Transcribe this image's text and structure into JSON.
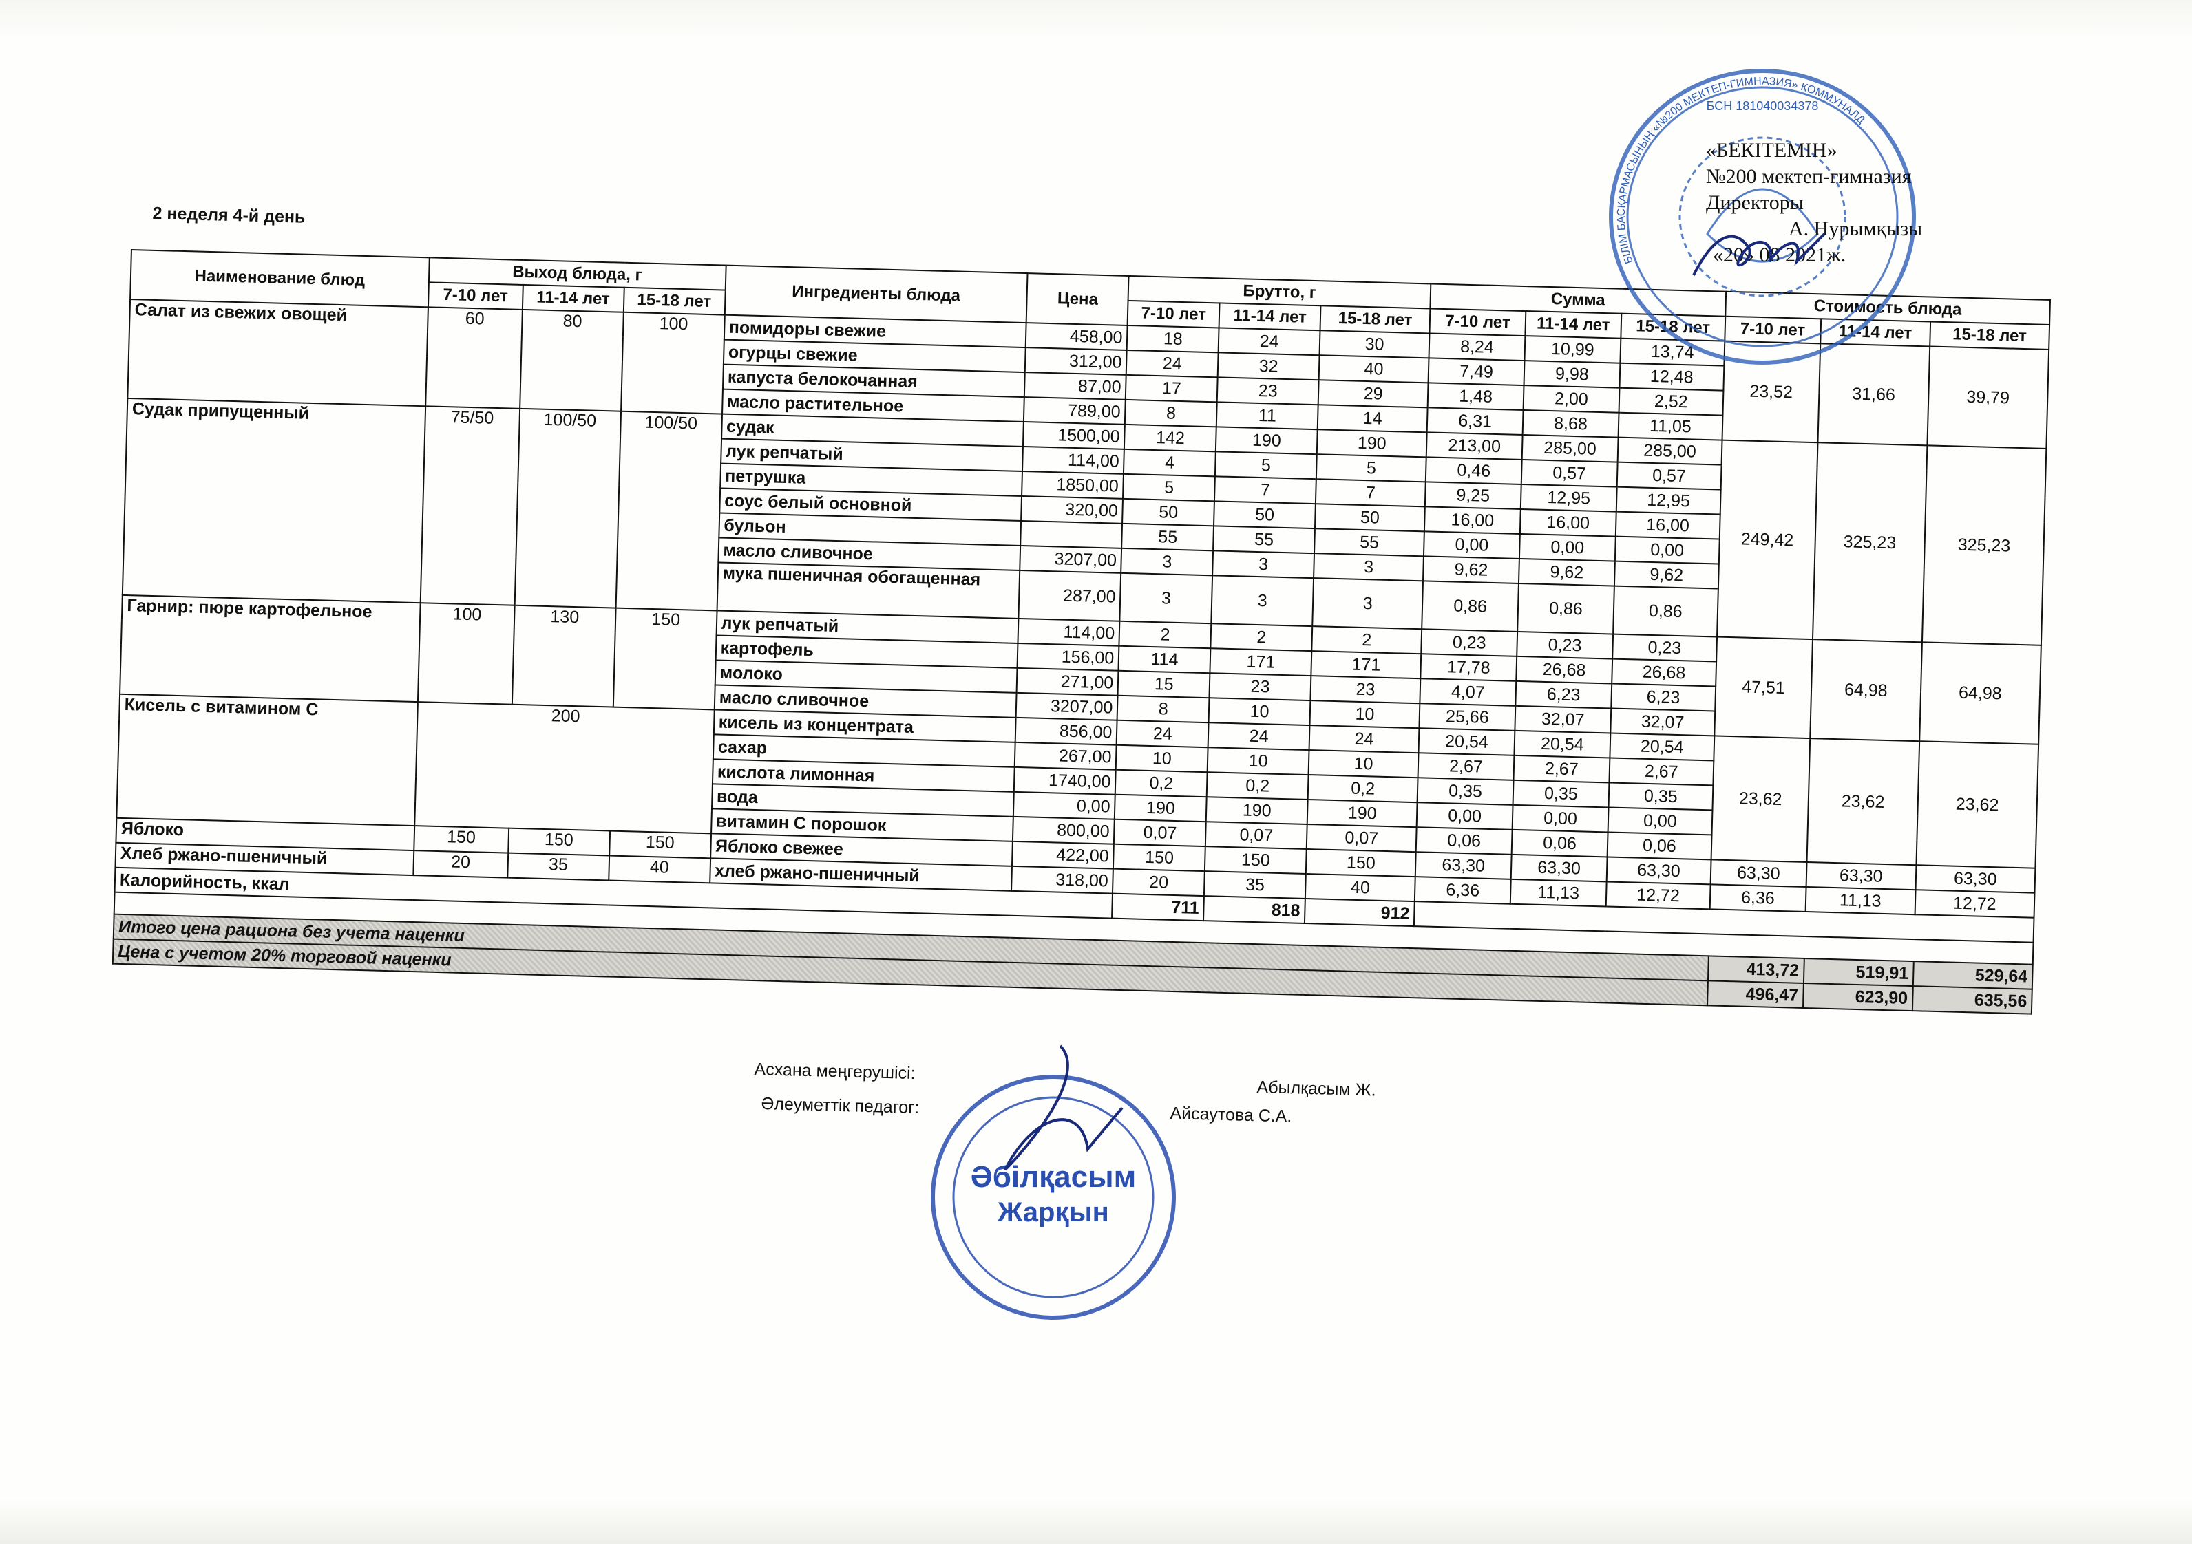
{
  "title": "2 неделя 4-й день",
  "approval": {
    "line1": "«БЕКІТЕМІН»",
    "line2": "№200 мектеп-гимназия",
    "line3": "Директоры",
    "line4": "А. Нурымқызы",
    "line5": "«20» 08 2021ж."
  },
  "headers": {
    "dish": "Наименование блюд",
    "output": "Выход блюда, г",
    "ingredients": "Ингредиенты блюда",
    "price": "Цена",
    "brutto": "Брутто, г",
    "sum": "Сумма",
    "cost": "Стоимость блюда",
    "ages": [
      "7-10 лет",
      "11-14 лет",
      "15-18 лет"
    ]
  },
  "dishes": [
    {
      "name": "Салат из свежих овощей",
      "output": [
        "60",
        "80",
        "100"
      ],
      "cost": [
        "23,52",
        "31,66",
        "39,79"
      ],
      "ingredients": [
        {
          "name": "помидоры свежие",
          "price": "458,00",
          "brutto": [
            "18",
            "24",
            "30"
          ],
          "sum": [
            "8,24",
            "10,99",
            "13,74"
          ]
        },
        {
          "name": "огурцы свежие",
          "price": "312,00",
          "brutto": [
            "24",
            "32",
            "40"
          ],
          "sum": [
            "7,49",
            "9,98",
            "12,48"
          ]
        },
        {
          "name": "капуста белокочанная",
          "price": "87,00",
          "brutto": [
            "17",
            "23",
            "29"
          ],
          "sum": [
            "1,48",
            "2,00",
            "2,52"
          ]
        },
        {
          "name": "масло растительное",
          "price": "789,00",
          "brutto": [
            "8",
            "11",
            "14"
          ],
          "sum": [
            "6,31",
            "8,68",
            "11,05"
          ]
        }
      ]
    },
    {
      "name": "Судак припущенный",
      "output": [
        "75/50",
        "100/50",
        "100/50"
      ],
      "cost": [
        "249,42",
        "325,23",
        "325,23"
      ],
      "ingredients": [
        {
          "name": "судак",
          "price": "1500,00",
          "brutto": [
            "142",
            "190",
            "190"
          ],
          "sum": [
            "213,00",
            "285,00",
            "285,00"
          ]
        },
        {
          "name": "лук репчатый",
          "price": "114,00",
          "brutto": [
            "4",
            "5",
            "5"
          ],
          "sum": [
            "0,46",
            "0,57",
            "0,57"
          ]
        },
        {
          "name": "петрушка",
          "price": "1850,00",
          "brutto": [
            "5",
            "7",
            "7"
          ],
          "sum": [
            "9,25",
            "12,95",
            "12,95"
          ]
        },
        {
          "name": "соус белый основной",
          "price": "320,00",
          "brutto": [
            "50",
            "50",
            "50"
          ],
          "sum": [
            "16,00",
            "16,00",
            "16,00"
          ]
        },
        {
          "name": "бульон",
          "price": "",
          "brutto": [
            "55",
            "55",
            "55"
          ],
          "sum": [
            "0,00",
            "0,00",
            "0,00"
          ]
        },
        {
          "name": "масло сливочное",
          "price": "3207,00",
          "brutto": [
            "3",
            "3",
            "3"
          ],
          "sum": [
            "9,62",
            "9,62",
            "9,62"
          ]
        },
        {
          "name": "мука пшеничная обогащенная",
          "price": "287,00",
          "brutto": [
            "3",
            "3",
            "3"
          ],
          "sum": [
            "0,86",
            "0,86",
            "0,86"
          ],
          "tall": true
        }
      ]
    },
    {
      "name": "Гарнир: пюре картофельное",
      "output": [
        "100",
        "130",
        "150"
      ],
      "cost": [
        "47,51",
        "64,98",
        "64,98"
      ],
      "ingredients": [
        {
          "name": "лук репчатый",
          "price": "114,00",
          "brutto": [
            "2",
            "2",
            "2"
          ],
          "sum": [
            "0,23",
            "0,23",
            "0,23"
          ]
        },
        {
          "name": "картофель",
          "price": "156,00",
          "brutto": [
            "114",
            "171",
            "171"
          ],
          "sum": [
            "17,78",
            "26,68",
            "26,68"
          ]
        },
        {
          "name": "молоко",
          "price": "271,00",
          "brutto": [
            "15",
            "23",
            "23"
          ],
          "sum": [
            "4,07",
            "6,23",
            "6,23"
          ]
        },
        {
          "name": "масло сливочное",
          "price": "3207,00",
          "brutto": [
            "8",
            "10",
            "10"
          ],
          "sum": [
            "25,66",
            "32,07",
            "32,07"
          ]
        }
      ]
    },
    {
      "name": "Кисель с витамином С",
      "output_merged": "200",
      "cost": [
        "23,62",
        "23,62",
        "23,62"
      ],
      "ingredients": [
        {
          "name": "кисель из концентрата",
          "price": "856,00",
          "brutto": [
            "24",
            "24",
            "24"
          ],
          "sum": [
            "20,54",
            "20,54",
            "20,54"
          ]
        },
        {
          "name": "сахар",
          "price": "267,00",
          "brutto": [
            "10",
            "10",
            "10"
          ],
          "sum": [
            "2,67",
            "2,67",
            "2,67"
          ]
        },
        {
          "name": "кислота лимонная",
          "price": "1740,00",
          "brutto": [
            "0,2",
            "0,2",
            "0,2"
          ],
          "sum": [
            "0,35",
            "0,35",
            "0,35"
          ]
        },
        {
          "name": "вода",
          "price": "0,00",
          "brutto": [
            "190",
            "190",
            "190"
          ],
          "sum": [
            "0,00",
            "0,00",
            "0,00"
          ]
        },
        {
          "name": "витамин С порошок",
          "price": "800,00",
          "brutto": [
            "0,07",
            "0,07",
            "0,07"
          ],
          "sum": [
            "0,06",
            "0,06",
            "0,06"
          ]
        }
      ]
    },
    {
      "name": "Яблоко",
      "output": [
        "150",
        "150",
        "150"
      ],
      "cost": [
        "63,30",
        "63,30",
        "63,30"
      ],
      "ingredients": [
        {
          "name": "Яблоко свежее",
          "price": "422,00",
          "brutto": [
            "150",
            "150",
            "150"
          ],
          "sum": [
            "63,30",
            "63,30",
            "63,30"
          ]
        }
      ]
    },
    {
      "name": "Хлеб ржано-пшеничный",
      "output": [
        "20",
        "35",
        "40"
      ],
      "cost": [
        "6,36",
        "11,13",
        "12,72"
      ],
      "ingredients": [
        {
          "name": "хлеб ржано-пшеничный",
          "price": "318,00",
          "brutto": [
            "20",
            "35",
            "40"
          ],
          "sum": [
            "6,36",
            "11,13",
            "12,72"
          ]
        }
      ]
    }
  ],
  "calories": {
    "label": "Калорийность, ккал",
    "values": [
      "711",
      "818",
      "912"
    ]
  },
  "totals": [
    {
      "label": "Итого цена рациона без учета наценки",
      "values": [
        "413,72",
        "519,91",
        "529,64"
      ]
    },
    {
      "label": "Цена с учетом 20% торговой наценки",
      "values": [
        "496,47",
        "623,90",
        "635,56"
      ]
    }
  ],
  "signatures": {
    "chef_role": "Асхана меңгерушісі:",
    "chef_name": "Абылқасым Ж.",
    "pedagog_role": "Әлеуметтік педагог:",
    "pedagog_name": "Айсаутова С.А."
  },
  "stamps": {
    "top_text": "БІЛІМ БАСҚАРМАСЫНЫҢ «№200 МЕКТЕП-ГИМНАЗИЯ» КОММУНАЛДЫҚ",
    "top_bin": "БСН 181040034378",
    "bottom_text": "Әбілқасым Жарқын"
  },
  "colors": {
    "stamp": "#2f5fb8",
    "total_row": "#cfccc6"
  }
}
